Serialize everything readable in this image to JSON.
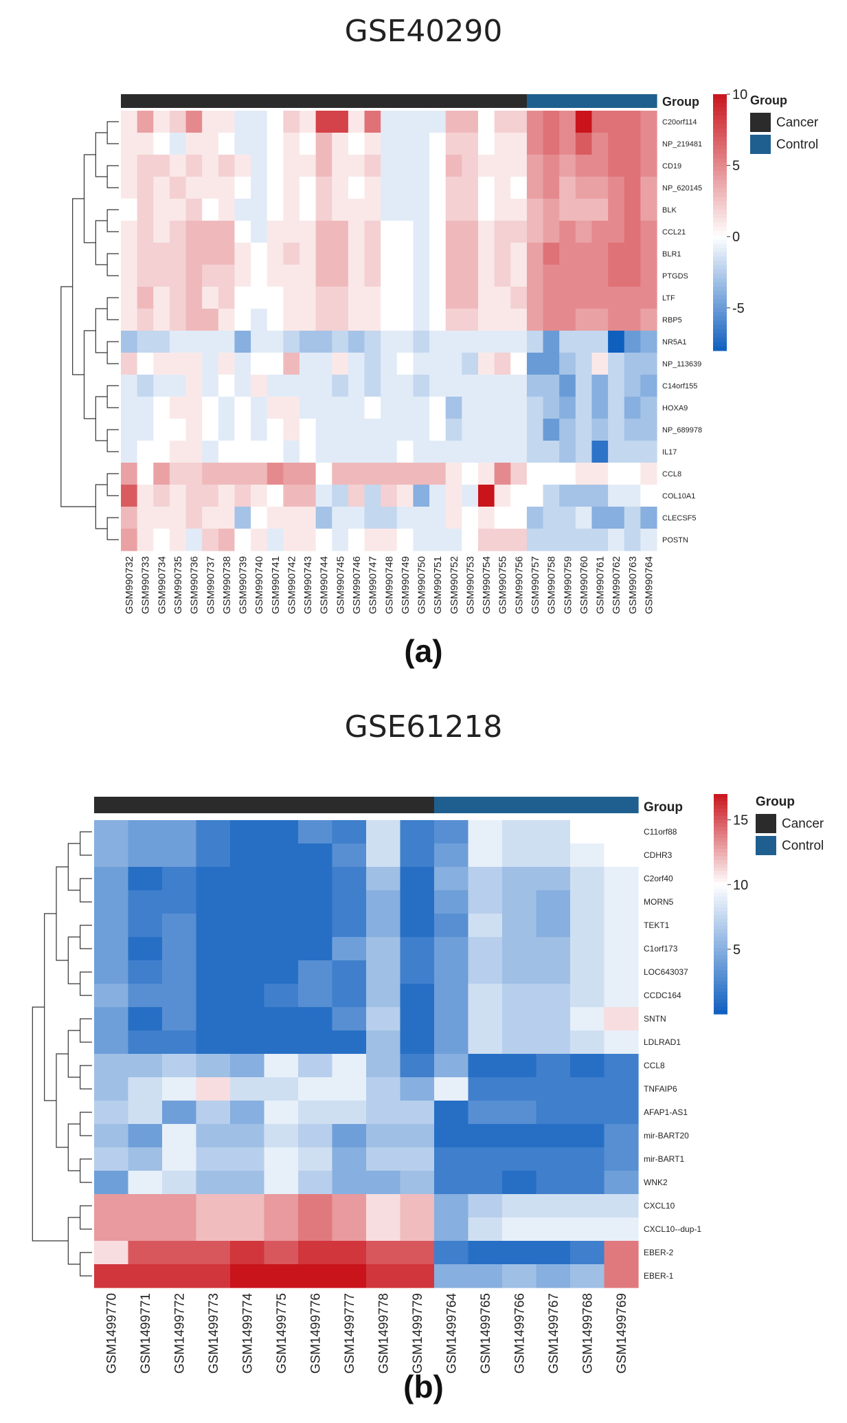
{
  "colors": {
    "high": "#c9141c",
    "mid": "#ffffff",
    "low": "#0f5fbf",
    "cancer": "#2b2b2b",
    "control": "#1f5f8f"
  },
  "chart_data": [
    {
      "type": "heatmap",
      "title": "GSE40290",
      "panel_label": "(a)",
      "group_track_label": "Group",
      "legend_title": "Group",
      "groups": [
        {
          "name": "Cancer",
          "color": "#2b2b2b"
        },
        {
          "name": "Control",
          "color": "#1f5f8f"
        }
      ],
      "color_scale": {
        "min": -8,
        "max": 10,
        "mid": 0,
        "ticks": [
          10,
          5,
          0,
          -5
        ]
      },
      "columns": [
        "GSM990732",
        "GSM990733",
        "GSM990734",
        "GSM990735",
        "GSM990736",
        "GSM990737",
        "GSM990738",
        "GSM990739",
        "GSM990740",
        "GSM990741",
        "GSM990742",
        "GSM990743",
        "GSM990744",
        "GSM990745",
        "GSM990746",
        "GSM990747",
        "GSM990748",
        "GSM990749",
        "GSM990750",
        "GSM990751",
        "GSM990752",
        "GSM990753",
        "GSM990754",
        "GSM990755",
        "GSM990756",
        "GSM990757",
        "GSM990758",
        "GSM990759",
        "GSM990760",
        "GSM990761",
        "GSM990762",
        "GSM990763",
        "GSM990764"
      ],
      "column_groups": [
        "Cancer",
        "Cancer",
        "Cancer",
        "Cancer",
        "Cancer",
        "Cancer",
        "Cancer",
        "Cancer",
        "Cancer",
        "Cancer",
        "Cancer",
        "Cancer",
        "Cancer",
        "Cancer",
        "Cancer",
        "Cancer",
        "Cancer",
        "Cancer",
        "Cancer",
        "Cancer",
        "Cancer",
        "Cancer",
        "Cancer",
        "Cancer",
        "Cancer",
        "Control",
        "Control",
        "Control",
        "Control",
        "Control",
        "Control",
        "Control",
        "Control"
      ],
      "rows": [
        "C20orf114",
        "NP_219481",
        "CD19",
        "NP_620145",
        "BLK",
        "CCL21",
        "BLR1",
        "PTGDS",
        "LTF",
        "RBP5",
        "NR5A1",
        "NP_113639",
        "C14orf155",
        "HOXA9",
        "NP_689978",
        "IL17",
        "CCL8",
        "COL10A1",
        "CLECSF5",
        "POSTN"
      ],
      "values": [
        [
          1,
          4,
          1,
          2,
          5,
          1,
          1,
          -1,
          -1,
          0,
          2,
          1,
          8,
          8,
          1,
          6,
          -1,
          -1,
          -1,
          -1,
          3,
          3,
          0,
          2,
          2,
          5,
          6,
          5,
          10,
          6,
          6,
          6,
          5
        ],
        [
          1,
          1,
          0,
          -1,
          1,
          1,
          0,
          -1,
          -1,
          0,
          1,
          0,
          3,
          1,
          0,
          1,
          -1,
          -1,
          -1,
          0,
          2,
          2,
          0,
          1,
          1,
          5,
          6,
          5,
          7,
          5,
          6,
          6,
          5
        ],
        [
          1,
          2,
          2,
          1,
          2,
          1,
          2,
          1,
          -1,
          0,
          1,
          1,
          3,
          1,
          1,
          2,
          -1,
          -1,
          -1,
          0,
          3,
          2,
          1,
          1,
          1,
          4,
          5,
          4,
          5,
          5,
          6,
          6,
          5
        ],
        [
          1,
          2,
          1,
          2,
          1,
          1,
          1,
          0,
          -1,
          0,
          1,
          0,
          2,
          1,
          0,
          1,
          -1,
          -1,
          -1,
          0,
          2,
          2,
          0,
          1,
          0,
          4,
          5,
          3,
          4,
          4,
          5,
          6,
          4
        ],
        [
          0,
          2,
          1,
          1,
          2,
          0,
          1,
          -1,
          -1,
          0,
          1,
          0,
          2,
          1,
          1,
          1,
          -1,
          -1,
          -1,
          0,
          2,
          2,
          0,
          1,
          1,
          3,
          4,
          3,
          3,
          3,
          5,
          6,
          4
        ],
        [
          1,
          2,
          1,
          2,
          3,
          3,
          3,
          0,
          -1,
          1,
          1,
          1,
          3,
          3,
          1,
          2,
          0,
          0,
          -1,
          0,
          3,
          3,
          1,
          2,
          2,
          3,
          4,
          5,
          4,
          5,
          5,
          6,
          5
        ],
        [
          1,
          2,
          2,
          2,
          3,
          3,
          3,
          1,
          0,
          1,
          2,
          1,
          3,
          3,
          1,
          2,
          0,
          0,
          -1,
          0,
          3,
          3,
          1,
          2,
          1,
          4,
          6,
          5,
          5,
          5,
          6,
          6,
          5
        ],
        [
          1,
          2,
          2,
          2,
          3,
          2,
          2,
          1,
          0,
          1,
          1,
          1,
          3,
          3,
          1,
          2,
          0,
          0,
          -1,
          0,
          3,
          3,
          1,
          2,
          1,
          4,
          5,
          5,
          5,
          5,
          6,
          6,
          5
        ],
        [
          1,
          3,
          1,
          2,
          3,
          1,
          2,
          0,
          0,
          0,
          1,
          1,
          2,
          2,
          1,
          1,
          0,
          0,
          -1,
          0,
          3,
          3,
          1,
          1,
          2,
          4,
          5,
          5,
          5,
          5,
          5,
          5,
          5
        ],
        [
          1,
          2,
          1,
          2,
          3,
          3,
          1,
          0,
          -1,
          0,
          1,
          1,
          2,
          2,
          1,
          1,
          0,
          0,
          -1,
          0,
          2,
          2,
          1,
          1,
          1,
          4,
          5,
          5,
          4,
          4,
          5,
          5,
          4
        ],
        [
          -3,
          -2,
          -2,
          -1,
          -1,
          -1,
          -1,
          -4,
          -1,
          -1,
          -2,
          -3,
          -3,
          -2,
          -3,
          -2,
          -1,
          -1,
          -2,
          -1,
          -1,
          -1,
          -1,
          -1,
          -1,
          -2,
          -5,
          -2,
          -2,
          -2,
          -8,
          -5,
          -4
        ],
        [
          2,
          0,
          1,
          1,
          1,
          -1,
          1,
          -1,
          0,
          0,
          3,
          -1,
          -1,
          1,
          -1,
          -2,
          -1,
          0,
          -1,
          -1,
          -1,
          -2,
          1,
          2,
          0,
          -5,
          -5,
          -3,
          -2,
          1,
          -2,
          -3,
          -3
        ],
        [
          -1,
          -2,
          -1,
          -1,
          1,
          -1,
          0,
          -1,
          1,
          -1,
          -1,
          -1,
          -1,
          -2,
          -1,
          -2,
          -1,
          -1,
          -2,
          -1,
          -1,
          -1,
          -1,
          -1,
          -1,
          -3,
          -3,
          -5,
          -2,
          -4,
          -2,
          -3,
          -4
        ],
        [
          -1,
          -1,
          0,
          1,
          1,
          0,
          -1,
          0,
          -1,
          1,
          1,
          -1,
          -1,
          -1,
          -1,
          0,
          -1,
          -1,
          -1,
          0,
          -3,
          -1,
          -1,
          -1,
          -1,
          -2,
          -3,
          -4,
          -2,
          -4,
          -2,
          -4,
          -3
        ],
        [
          -1,
          -1,
          0,
          0,
          1,
          0,
          -1,
          0,
          -1,
          0,
          1,
          0,
          -1,
          -1,
          -1,
          -1,
          -1,
          -1,
          -1,
          0,
          -2,
          -1,
          -1,
          -1,
          -1,
          -2,
          -5,
          -3,
          -2,
          -3,
          -2,
          -3,
          -3
        ],
        [
          -1,
          0,
          0,
          1,
          1,
          -1,
          0,
          0,
          0,
          0,
          -1,
          0,
          -1,
          -1,
          -1,
          -1,
          -1,
          0,
          -1,
          -1,
          -1,
          -1,
          -1,
          -1,
          -1,
          -2,
          -2,
          -3,
          -2,
          -7,
          -2,
          -2,
          -2
        ],
        [
          4,
          0,
          4,
          2,
          2,
          3,
          3,
          3,
          3,
          5,
          4,
          4,
          0,
          3,
          3,
          3,
          3,
          3,
          3,
          3,
          1,
          0,
          1,
          5,
          2,
          0,
          0,
          0,
          1,
          1,
          0,
          0,
          1
        ],
        [
          7,
          1,
          2,
          1,
          2,
          2,
          1,
          2,
          1,
          0,
          3,
          3,
          -1,
          -2,
          2,
          -2,
          2,
          1,
          -4,
          -1,
          1,
          -1,
          10,
          1,
          0,
          0,
          -2,
          -3,
          -3,
          -3,
          -1,
          -1,
          0
        ],
        [
          3,
          1,
          1,
          1,
          2,
          1,
          1,
          -3,
          0,
          1,
          1,
          1,
          -3,
          -1,
          -1,
          -2,
          -2,
          -1,
          -1,
          -1,
          1,
          0,
          1,
          0,
          0,
          -3,
          -2,
          -2,
          -1,
          -4,
          -4,
          -2,
          -4
        ],
        [
          4,
          1,
          0,
          1,
          -1,
          2,
          3,
          0,
          1,
          -1,
          1,
          1,
          0,
          -1,
          0,
          1,
          1,
          0,
          -1,
          -1,
          -1,
          0,
          2,
          2,
          2,
          -2,
          -2,
          -2,
          -2,
          -2,
          -1,
          -2,
          -1
        ]
      ]
    },
    {
      "type": "heatmap",
      "title": "GSE61218",
      "panel_label": "(b)",
      "group_track_label": "Group",
      "legend_title": "Group",
      "groups": [
        {
          "name": "Cancer",
          "color": "#2b2b2b"
        },
        {
          "name": "Control",
          "color": "#1f5f8f"
        }
      ],
      "color_scale": {
        "min": 0,
        "max": 17,
        "mid": 10,
        "ticks": [
          15,
          10,
          5
        ]
      },
      "columns": [
        "GSM1499770",
        "GSM1499771",
        "GSM1499772",
        "GSM1499773",
        "GSM1499774",
        "GSM1499775",
        "GSM1499776",
        "GSM1499777",
        "GSM1499778",
        "GSM1499779",
        "GSM1499764",
        "GSM1499765",
        "GSM1499766",
        "GSM1499767",
        "GSM1499768",
        "GSM1499769"
      ],
      "column_groups": [
        "Cancer",
        "Cancer",
        "Cancer",
        "Cancer",
        "Cancer",
        "Cancer",
        "Cancer",
        "Cancer",
        "Cancer",
        "Cancer",
        "Control",
        "Control",
        "Control",
        "Control",
        "Control",
        "Control"
      ],
      "rows": [
        "C11orf88",
        "CDHR3",
        "C2orf40",
        "MORN5",
        "TEKT1",
        "C1orf173",
        "LOC643037",
        "CCDC164",
        "SNTN",
        "LDLRAD1",
        "CCL8",
        "TNFAIP6",
        "AFAP1-AS1",
        "mir-BART20",
        "mir-BART1",
        "WNK2",
        "CXCL10",
        "CXCL10--dup-1",
        "EBER-2",
        "EBER-1"
      ],
      "values": [
        [
          5,
          4,
          4,
          2,
          1,
          1,
          3,
          2,
          8,
          2,
          3,
          9,
          8,
          8,
          10,
          10
        ],
        [
          5,
          4,
          4,
          2,
          1,
          1,
          1,
          3,
          8,
          2,
          4,
          9,
          8,
          8,
          9,
          10
        ],
        [
          4,
          1,
          2,
          1,
          1,
          1,
          1,
          2,
          6,
          1,
          5,
          7,
          6,
          6,
          8,
          9
        ],
        [
          4,
          2,
          2,
          1,
          1,
          1,
          1,
          2,
          5,
          1,
          4,
          7,
          6,
          5,
          8,
          9
        ],
        [
          4,
          2,
          3,
          1,
          1,
          1,
          1,
          2,
          5,
          1,
          3,
          8,
          6,
          5,
          8,
          9
        ],
        [
          4,
          1,
          3,
          1,
          1,
          1,
          1,
          4,
          6,
          2,
          4,
          7,
          6,
          6,
          8,
          9
        ],
        [
          4,
          2,
          3,
          1,
          1,
          1,
          3,
          2,
          6,
          2,
          4,
          7,
          6,
          6,
          8,
          9
        ],
        [
          5,
          3,
          3,
          1,
          1,
          2,
          3,
          2,
          6,
          1,
          4,
          8,
          7,
          7,
          8,
          9
        ],
        [
          4,
          1,
          3,
          1,
          1,
          1,
          1,
          3,
          7,
          1,
          4,
          8,
          7,
          7,
          9,
          11
        ],
        [
          4,
          2,
          2,
          1,
          1,
          1,
          1,
          1,
          6,
          1,
          4,
          8,
          7,
          7,
          8,
          9
        ],
        [
          6,
          6,
          7,
          6,
          5,
          9,
          7,
          9,
          6,
          2,
          5,
          1,
          1,
          2,
          1,
          2
        ],
        [
          6,
          8,
          9,
          11,
          8,
          8,
          9,
          9,
          7,
          5,
          9,
          2,
          2,
          2,
          2,
          2
        ],
        [
          7,
          8,
          4,
          7,
          5,
          9,
          8,
          8,
          7,
          7,
          1,
          3,
          3,
          2,
          2,
          2
        ],
        [
          6,
          4,
          9,
          6,
          6,
          8,
          7,
          4,
          6,
          6,
          1,
          1,
          1,
          1,
          1,
          3
        ],
        [
          7,
          6,
          9,
          7,
          7,
          9,
          8,
          5,
          7,
          7,
          2,
          2,
          2,
          2,
          2,
          3
        ],
        [
          4,
          9,
          8,
          6,
          6,
          9,
          7,
          5,
          5,
          6,
          2,
          2,
          1,
          2,
          2,
          4
        ],
        [
          13,
          13,
          13,
          12,
          12,
          13,
          14,
          13,
          11,
          12,
          5,
          7,
          8,
          8,
          8,
          8
        ],
        [
          13,
          13,
          13,
          12,
          12,
          13,
          14,
          13,
          11,
          12,
          5,
          8,
          9,
          9,
          9,
          9
        ],
        [
          11,
          15,
          15,
          15,
          16,
          15,
          16,
          16,
          15,
          15,
          2,
          1,
          1,
          1,
          2,
          14
        ],
        [
          16,
          16,
          16,
          16,
          17,
          17,
          18,
          18,
          16,
          16,
          5,
          5,
          6,
          5,
          6,
          14
        ]
      ]
    }
  ]
}
